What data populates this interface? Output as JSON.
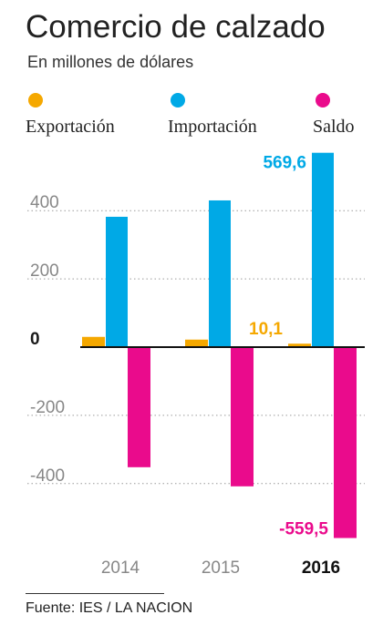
{
  "title": "Comercio de calzado",
  "subtitle": "En millones de dólares",
  "source": "Fuente: IES / LA NACION",
  "colors": {
    "exportacion": "#f5a800",
    "importacion": "#00a9e6",
    "saldo": "#ea0b8c",
    "grid": "#9a9a9a",
    "tick": "#888888"
  },
  "legend": [
    {
      "label": "Exportación",
      "color": "#f5a800"
    },
    {
      "label": "Importación",
      "color": "#00a9e6"
    },
    {
      "label": "Saldo",
      "color": "#ea0b8c"
    }
  ],
  "chart_data": {
    "type": "bar",
    "categories": [
      "2014",
      "2015",
      "2016"
    ],
    "highlight_category": "2016",
    "series": [
      {
        "name": "Exportación",
        "values": [
          30,
          22,
          10.1
        ]
      },
      {
        "name": "Importación",
        "values": [
          382,
          430,
          569.6
        ]
      },
      {
        "name": "Saldo",
        "values": [
          -352,
          -408,
          -559.5
        ]
      }
    ],
    "yticks": [
      "400",
      "200",
      "0",
      "-200",
      "-400"
    ],
    "ylim": [
      -570,
      575
    ],
    "grid": true,
    "legend_position": "top",
    "data_labels": [
      {
        "series": "Importación",
        "category": "2016",
        "text": "569,6"
      },
      {
        "series": "Exportación",
        "category": "2016",
        "text": "10,1"
      },
      {
        "series": "Saldo",
        "category": "2016",
        "text": "-559,5"
      }
    ]
  }
}
